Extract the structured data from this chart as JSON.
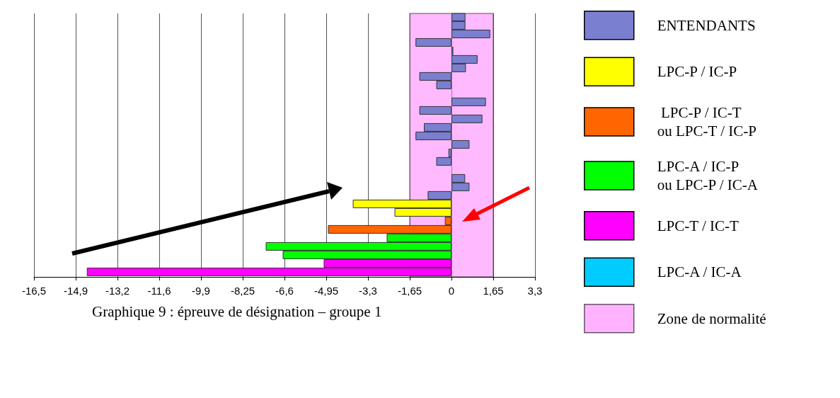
{
  "chart_data": {
    "type": "bar",
    "orientation": "horizontal",
    "stacked": true,
    "title": "Graphique 9 : épreuve de désignation – groupe 1",
    "categories": [
      null,
      null,
      null,
      null,
      null,
      null,
      null,
      null,
      null,
      null,
      null,
      null,
      null,
      null,
      null,
      null,
      null,
      null,
      null,
      null,
      null,
      null,
      null,
      null,
      null,
      null,
      null,
      null,
      null,
      null,
      null
    ],
    "series": [
      {
        "name": "ENTENDANTS",
        "color": "#7b7fd0",
        "values": [
          0.55,
          0.55,
          1.53,
          -1.42,
          0.07,
          1.03,
          0.57,
          -1.27,
          -0.6,
          null,
          1.36,
          -1.27,
          1.22,
          -1.09,
          -1.42,
          0.71,
          -0.12,
          -0.6,
          null,
          0.54,
          0.71,
          -0.94,
          null,
          null,
          null,
          null,
          null,
          null,
          null,
          null,
          null
        ]
      },
      {
        "name": "LPC-P / IC-P",
        "color": "#ffff00",
        "values": [
          null,
          null,
          null,
          null,
          null,
          null,
          null,
          null,
          null,
          null,
          null,
          null,
          null,
          null,
          null,
          null,
          null,
          null,
          null,
          null,
          null,
          null,
          -3.9,
          -2.25,
          null,
          null,
          null,
          null,
          null,
          null,
          null
        ]
      },
      {
        "name": " LPC-P / IC-T\nou LPC-T / IC-P",
        "color": "#ff6600",
        "values": [
          null,
          null,
          null,
          null,
          null,
          null,
          null,
          null,
          null,
          null,
          null,
          null,
          null,
          null,
          null,
          null,
          null,
          null,
          null,
          null,
          null,
          null,
          null,
          null,
          -0.26,
          -4.88,
          null,
          null,
          null,
          null,
          null
        ]
      },
      {
        "name": "LPC-A / IC-P\nou LPC-P / IC-A",
        "color": "#00ff00",
        "values": [
          null,
          null,
          null,
          null,
          null,
          null,
          null,
          null,
          null,
          null,
          null,
          null,
          null,
          null,
          null,
          null,
          null,
          null,
          null,
          null,
          null,
          null,
          null,
          null,
          null,
          null,
          -2.56,
          -7.34,
          -6.67,
          null,
          null
        ]
      },
      {
        "name": "LPC-T / IC-T",
        "color": "#ff00ff",
        "values": [
          null,
          null,
          null,
          null,
          null,
          null,
          null,
          null,
          null,
          null,
          null,
          null,
          null,
          null,
          null,
          null,
          null,
          null,
          null,
          null,
          null,
          null,
          null,
          null,
          null,
          null,
          null,
          null,
          null,
          -5.05,
          -14.41
        ]
      },
      {
        "name": "LPC-A / IC-A",
        "color": "#00ccff",
        "values": [
          null,
          null,
          null,
          null,
          null,
          null,
          null,
          null,
          null,
          null,
          null,
          null,
          null,
          null,
          null,
          null,
          null,
          null,
          null,
          null,
          null,
          null,
          null,
          null,
          null,
          null,
          null,
          null,
          null,
          null,
          null
        ]
      }
    ],
    "xlim": [
      -16.5,
      3.3
    ],
    "xticks": [
      {
        "value": -16.5,
        "label": "-16,5"
      },
      {
        "value": -14.85,
        "label": "-14,9"
      },
      {
        "value": -13.2,
        "label": "-13,2"
      },
      {
        "value": -11.55,
        "label": "-11,6"
      },
      {
        "value": -9.9,
        "label": "-9,9"
      },
      {
        "value": -8.25,
        "label": "-8,25"
      },
      {
        "value": -6.6,
        "label": "-6,6"
      },
      {
        "value": -4.95,
        "label": "-4,95"
      },
      {
        "value": -3.3,
        "label": "-3,3"
      },
      {
        "value": -1.65,
        "label": "-1,65"
      },
      0,
      {
        "value": 1.65,
        "label": "1,65"
      },
      {
        "value": 3.3,
        "label": "3,3"
      }
    ],
    "bands": [
      {
        "axis": "x",
        "from": -1.65,
        "to": 1.65,
        "label": "Zone de normalité",
        "color": "#ff80ff"
      }
    ],
    "grid": "x",
    "legend": "right"
  }
}
